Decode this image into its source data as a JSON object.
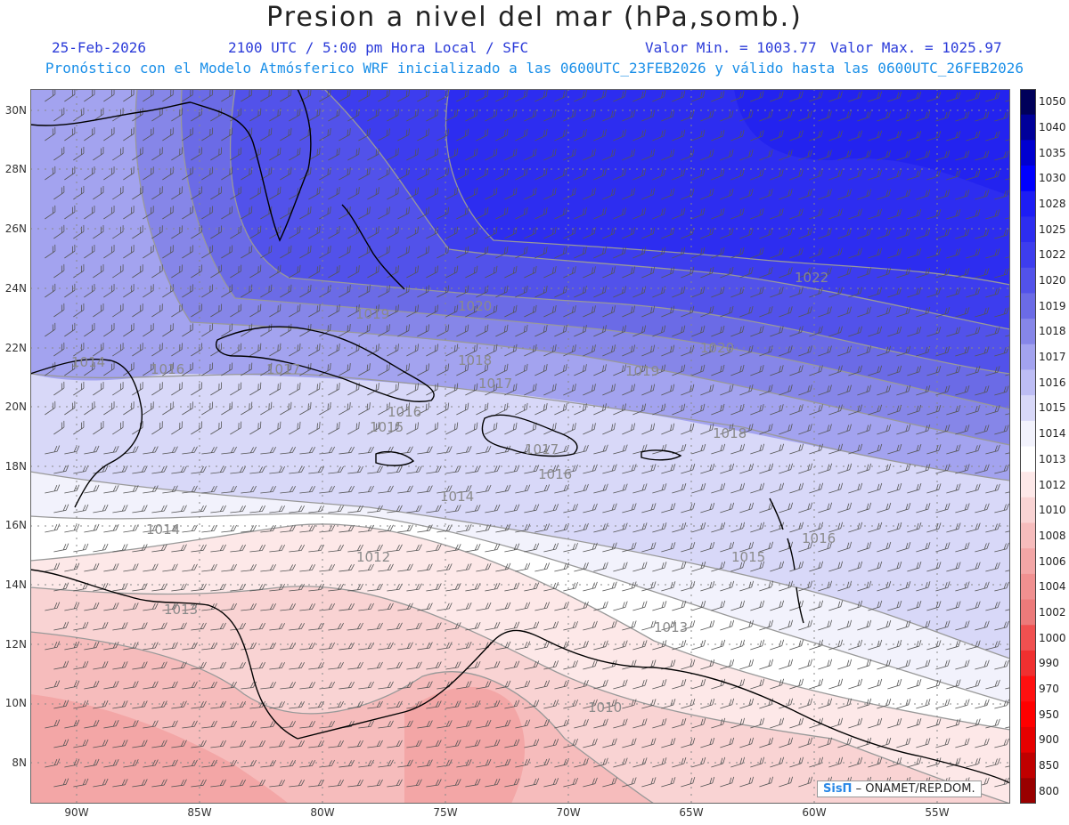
{
  "header": {
    "title": "Presion a nivel del mar (hPa,somb.)",
    "date": "25-Feb-2026",
    "time": "2100 UTC / 5:00 pm Hora Local / SFC",
    "min": "Valor Min. = 1003.77",
    "max": "Valor Max. = 1025.97",
    "subtitle": "Pronóstico con el Modelo Atmósferico WRF inicializado a las 0600UTC_23FEB2026 y válido hasta las  0600UTC_26FEB2026"
  },
  "axes": {
    "lat_ticks": [
      "30N",
      "28N",
      "26N",
      "24N",
      "22N",
      "20N",
      "18N",
      "16N",
      "14N",
      "12N",
      "10N",
      "8N"
    ],
    "lon_ticks": [
      "90W",
      "85W",
      "80W",
      "75W",
      "70W",
      "65W",
      "60W",
      "55W"
    ]
  },
  "colorbar": {
    "levels": [
      "1050",
      "1040",
      "1035",
      "1030",
      "1028",
      "1025",
      "1022",
      "1020",
      "1019",
      "1018",
      "1017",
      "1016",
      "1015",
      "1014",
      "1013",
      "1012",
      "1010",
      "1008",
      "1006",
      "1004",
      "1002",
      "1000",
      "990",
      "970",
      "950",
      "900",
      "850",
      "800"
    ],
    "colors": [
      "#00005a",
      "#00009a",
      "#0000d0",
      "#0000ff",
      "#1d1df5",
      "#2d2df0",
      "#3d3dee",
      "#5252ea",
      "#6b6be6",
      "#8686e8",
      "#a3a3ef",
      "#bdbdf4",
      "#d8d8f8",
      "#f2f2fc",
      "#ffffff",
      "#fde8e8",
      "#f9d3d3",
      "#f6bcbc",
      "#f3a6a6",
      "#f09090",
      "#ec7a7a",
      "#f05050",
      "#f03030",
      "#ff1010",
      "#ff0000",
      "#e60000",
      "#c00000",
      "#990000"
    ]
  },
  "contour_labels": [
    "1022",
    "1020",
    "1020",
    "1019",
    "1019",
    "1018",
    "1018",
    "1017",
    "1017",
    "1016",
    "1016",
    "1016",
    "1016",
    "1015",
    "1015",
    "1014",
    "1014",
    "1014",
    "1013",
    "1013",
    "1012",
    "1010",
    "1017",
    "1016"
  ],
  "credit": {
    "brand": "SisΠ",
    "text": "– ONAMET/REP.DOM."
  }
}
